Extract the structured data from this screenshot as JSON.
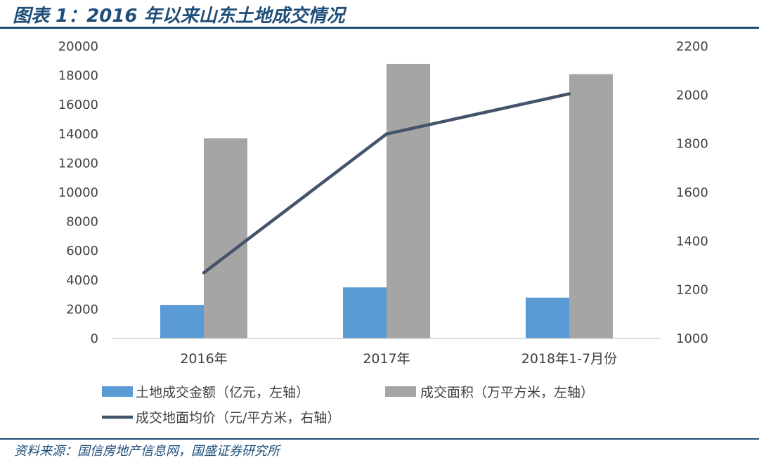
{
  "header": {
    "title": "图表 1：2016 年以来山东土地成交情况"
  },
  "footer": {
    "source": "资料来源：国信房地产信息网，国盛证券研究所"
  },
  "colors": {
    "accent": "#1F4E79",
    "series_amount": "#5B9BD5",
    "series_area": "#A5A5A5",
    "series_price": "#44546A"
  },
  "chart_data": {
    "type": "bar",
    "categories": [
      "2016年",
      "2017年",
      "2018年1-7月份"
    ],
    "series": [
      {
        "name": "土地成交金额（亿元，左轴）",
        "type": "bar",
        "axis": "left",
        "values": [
          2300,
          3500,
          2800
        ]
      },
      {
        "name": "成交面积（万平方米，左轴）",
        "type": "bar",
        "axis": "left",
        "values": [
          13700,
          18800,
          18100
        ]
      },
      {
        "name": "成交地面均价（元/平方米，右轴）",
        "type": "line",
        "axis": "right",
        "values": [
          1270,
          1840,
          2005
        ]
      }
    ],
    "y_left": {
      "min": 0,
      "max": 20000,
      "ticks": [
        0,
        2000,
        4000,
        6000,
        8000,
        10000,
        12000,
        14000,
        16000,
        18000,
        20000
      ]
    },
    "y_right": {
      "min": 1000,
      "max": 2200,
      "ticks": [
        1000,
        1200,
        1400,
        1600,
        1800,
        2000,
        2200
      ]
    },
    "grid": false,
    "legend": "bottom"
  }
}
